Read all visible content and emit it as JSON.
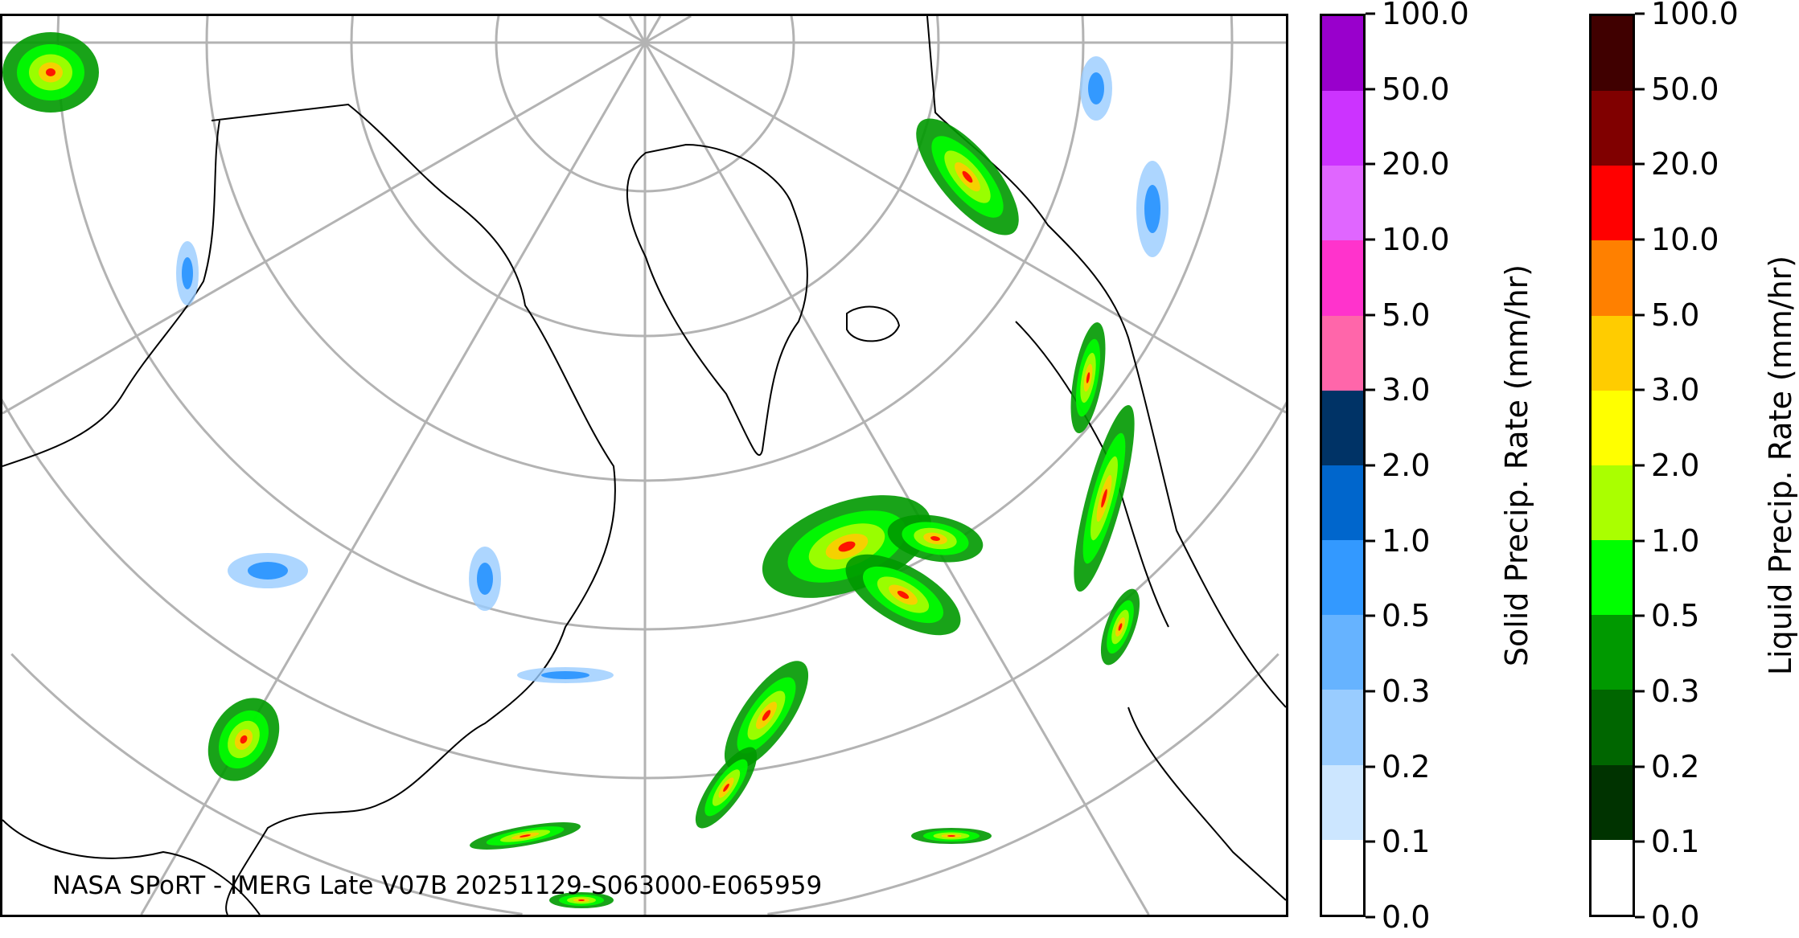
{
  "map": {
    "caption": "NASA SPoRT - IMERG Late V07B 20251129-S063000-E065959",
    "projection": "north-polar-stereographic",
    "graticule_color": "#b3b3b3",
    "coastline_color": "#000000"
  },
  "colorbars": [
    {
      "title": "Solid Precip. Rate (mm/hr)",
      "ticks": [
        "0.0",
        "0.1",
        "0.2",
        "0.3",
        "0.5",
        "1.0",
        "2.0",
        "3.0",
        "5.0",
        "10.0",
        "20.0",
        "50.0",
        "100.0"
      ],
      "colors": [
        "#ffffff",
        "#cce6ff",
        "#99ccff",
        "#66b3ff",
        "#3399ff",
        "#0066cc",
        "#003366",
        "#ff66aa",
        "#ff33cc",
        "#e066ff",
        "#cc33ff",
        "#9900cc"
      ]
    },
    {
      "title": "Liquid Precip. Rate (mm/hr)",
      "ticks": [
        "0.0",
        "0.1",
        "0.2",
        "0.3",
        "0.5",
        "1.0",
        "2.0",
        "3.0",
        "5.0",
        "10.0",
        "20.0",
        "50.0",
        "100.0"
      ],
      "colors": [
        "#ffffff",
        "#003300",
        "#006600",
        "#009900",
        "#00ff00",
        "#aaff00",
        "#ffff00",
        "#ffcc00",
        "#ff8000",
        "#ff0000",
        "#800000",
        "#400000"
      ]
    }
  ]
}
